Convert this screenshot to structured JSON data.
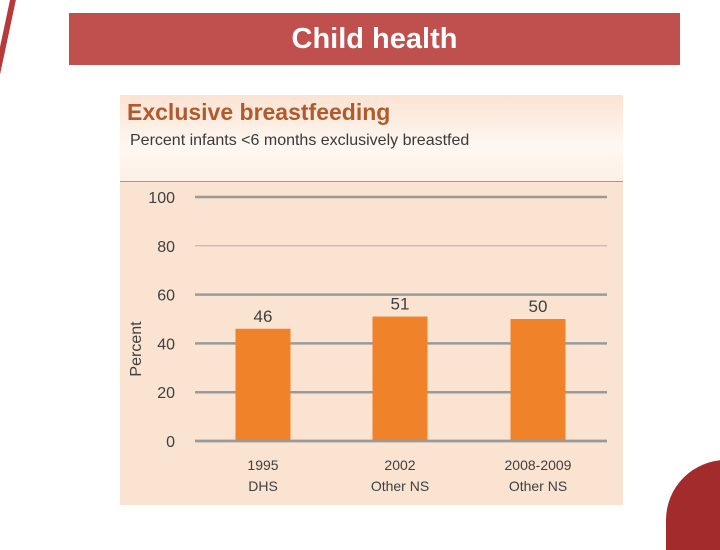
{
  "slide": {
    "title": "Child health",
    "accent_color": "#c0504d"
  },
  "chart_data": {
    "type": "bar",
    "title": "Exclusive breastfeeding",
    "subtitle": "Percent infants <6 months exclusively breastfed",
    "ylabel": "Percent",
    "xlabel": "",
    "ylim": [
      0,
      100
    ],
    "yticks": [
      0,
      20,
      40,
      60,
      80,
      100
    ],
    "grid": true,
    "categories": [
      {
        "line1": "1995",
        "line2": "DHS"
      },
      {
        "line1": "2002",
        "line2": "Other NS"
      },
      {
        "line1": "2008-2009",
        "line2": "Other NS"
      }
    ],
    "values": [
      46,
      51,
      50
    ],
    "bar_color": "#f0832a",
    "background_color": "#fbe3d2"
  }
}
